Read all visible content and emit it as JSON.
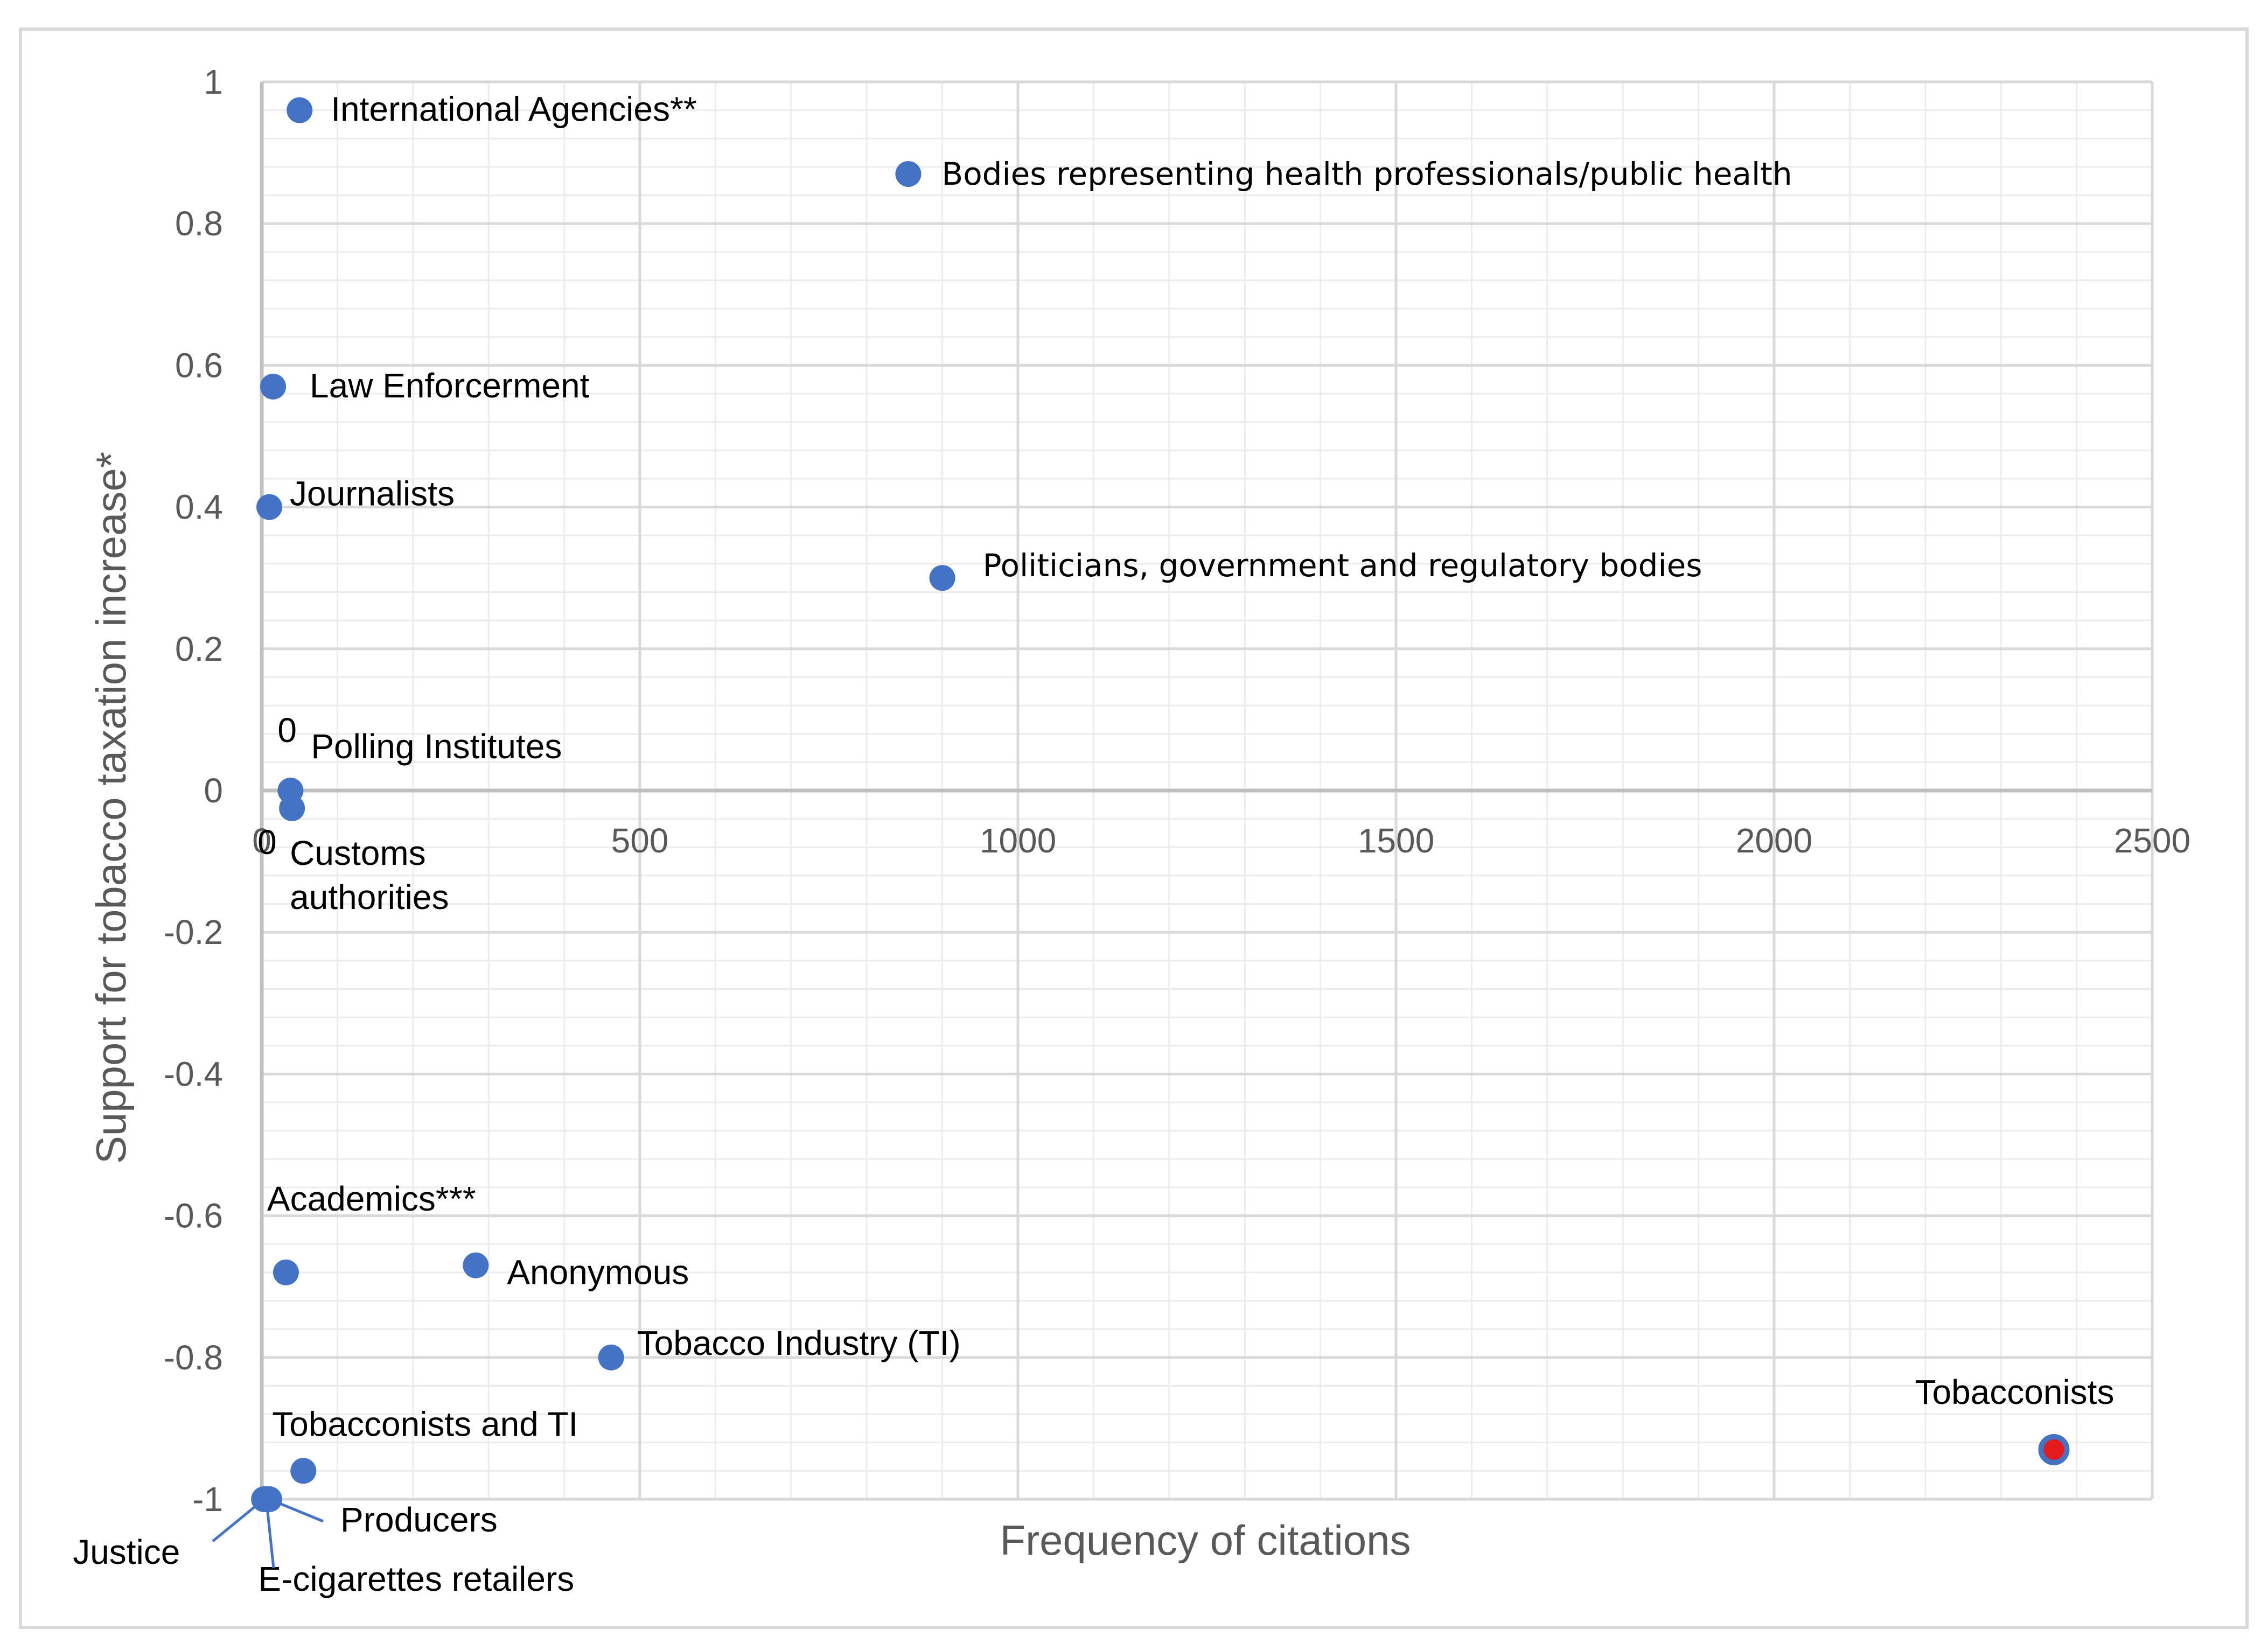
{
  "chart_data": {
    "type": "scatter",
    "xlabel": "Frequency of citations",
    "ylabel": "Support for tobacco taxation increase*",
    "xlim": [
      0,
      2500
    ],
    "ylim": [
      -1,
      1
    ],
    "x_ticks": [
      0,
      500,
      1000,
      1500,
      2000,
      2500
    ],
    "y_ticks": [
      -1,
      -0.8,
      -0.6,
      -0.4,
      -0.2,
      0,
      0.2,
      0.4,
      0.6,
      0.8,
      1
    ],
    "grid": true,
    "points": [
      {
        "label": "International Agencies**",
        "x": 50,
        "y": 0.96
      },
      {
        "label": "Bodies representing health professionals/public health",
        "x": 855,
        "y": 0.87
      },
      {
        "label": "Law Enforcerment",
        "x": 15,
        "y": 0.57
      },
      {
        "label": "Journalists",
        "x": 10,
        "y": 0.4
      },
      {
        "label": "Politicians, government and regulatory bodies",
        "x": 900,
        "y": 0.3
      },
      {
        "label": "Polling Institutes",
        "x": 38,
        "y": 0.0,
        "value_label": "0"
      },
      {
        "label": "Customs authorities",
        "x": 40,
        "y": -0.025,
        "value_label": "0"
      },
      {
        "label": "Academics***",
        "x": 32,
        "y": -0.68
      },
      {
        "label": "Anonymous",
        "x": 283,
        "y": -0.67
      },
      {
        "label": "Tobacco Industry (TI)",
        "x": 462,
        "y": -0.8
      },
      {
        "label": "Tobacconists and TI",
        "x": 55,
        "y": -0.96
      },
      {
        "label": "Producers",
        "x": 10,
        "y": -1.0
      },
      {
        "label": "Justice",
        "x": 3,
        "y": -1.0
      },
      {
        "label": "E-cigarettes retailers",
        "x": 6,
        "y": -1.0
      },
      {
        "label": "Tobacconists",
        "x": 2370,
        "y": -0.93,
        "highlight": true
      }
    ],
    "colors": {
      "point": "#4472c4",
      "highlight": "#e41a1c",
      "grid": "#d9d9d9",
      "axis": "#bfbfbf"
    }
  }
}
